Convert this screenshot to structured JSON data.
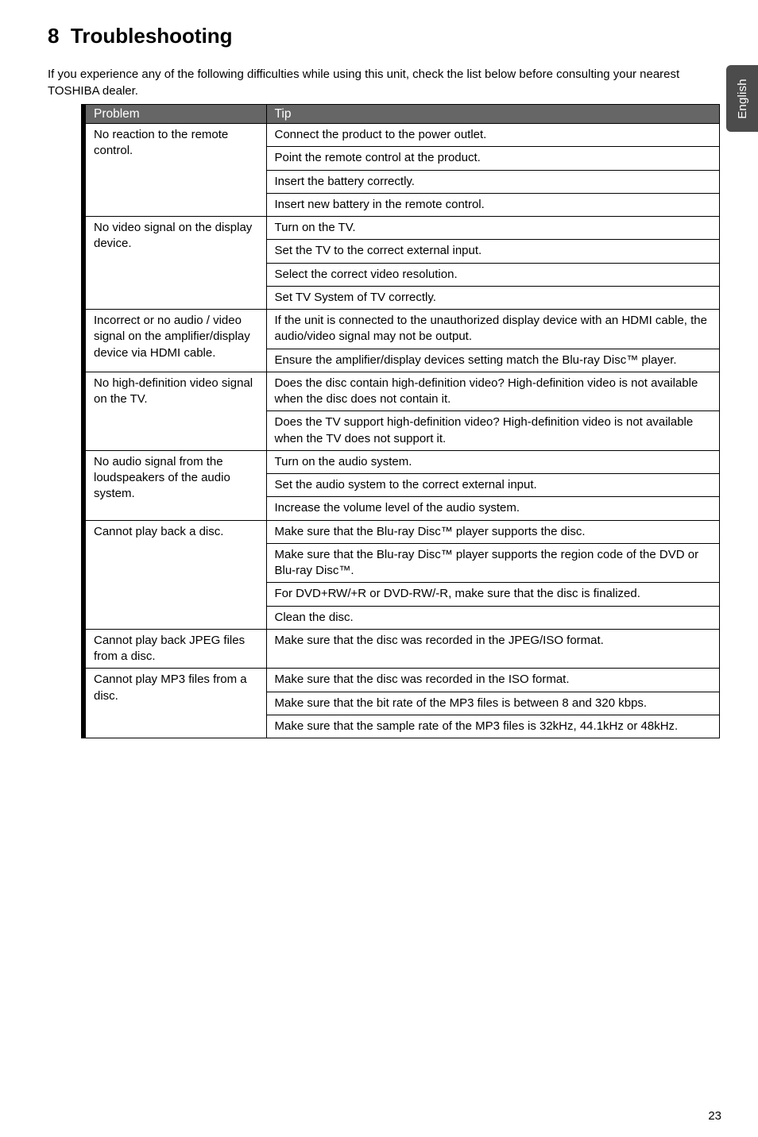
{
  "section": {
    "number": "8",
    "title": "Troubleshooting"
  },
  "intro": "If you experience any of the following difficulties while using this unit, check the list below before consulting your nearest TOSHIBA dealer.",
  "side_tab": "English",
  "page_number": "23",
  "table": {
    "header": {
      "col1": "Problem",
      "col2": "Tip"
    },
    "groups": [
      {
        "problem": "No reaction to the remote control.",
        "tips": [
          "Connect the product to the power outlet.",
          "Point the remote control at the product.",
          "Insert the battery correctly.",
          "Insert new battery in the remote control."
        ]
      },
      {
        "problem": "No video signal on the display device.",
        "tips": [
          "Turn on the TV.",
          "Set the TV to the correct external input.",
          "Select the correct video resolution.",
          "Set TV System of TV correctly."
        ]
      },
      {
        "problem": "Incorrect or no audio / video signal on the amplifier/display device via HDMI cable.",
        "tips": [
          "If the unit is connected to the unauthorized display device with an HDMI cable, the audio/video signal may not be output.",
          "Ensure the amplifier/display devices setting match the Blu-ray Disc™ player."
        ]
      },
      {
        "problem": "No high-definition video signal on the TV.",
        "tips": [
          "Does the disc contain high-definition video? High-definition video is not available when the disc does not contain it.",
          "Does the TV support high-definition video? High-definition video is not available when the TV does not support it."
        ]
      },
      {
        "problem": "No audio signal from the loudspeakers of the audio system.",
        "tips": [
          "Turn on the audio system.",
          "Set the audio system to the correct external input.",
          "Increase the volume level of the audio system."
        ]
      },
      {
        "problem": "Cannot play back a disc.",
        "tips": [
          "Make sure that the Blu-ray Disc™ player supports the disc.",
          "Make sure that the Blu-ray Disc™ player supports the region code of the DVD or Blu-ray Disc™.",
          "For DVD+RW/+R or DVD-RW/-R, make sure that the disc is finalized.",
          "Clean the disc."
        ]
      },
      {
        "problem": "Cannot play back JPEG files from a disc.",
        "tips": [
          "Make sure that the disc was recorded in the JPEG/ISO format."
        ]
      },
      {
        "problem": "Cannot play MP3 files from a disc.",
        "tips": [
          "Make sure that the disc was recorded in the ISO format.",
          "Make sure that the bit rate of the MP3 files is between 8 and 320 kbps.",
          "Make sure that the sample rate of the MP3 files is 32kHz, 44.1kHz or 48kHz."
        ]
      }
    ]
  }
}
